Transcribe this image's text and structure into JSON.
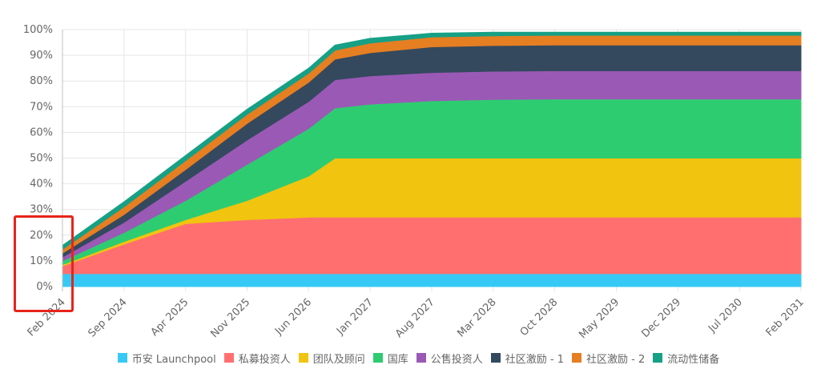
{
  "chart_data": {
    "type": "area",
    "stacked": true,
    "yaxis": {
      "ticks": [
        "100%",
        "90%",
        "80%",
        "70%",
        "60%",
        "50%",
        "40%",
        "30%",
        "20%",
        "10%",
        "0%"
      ],
      "ylim": [
        0,
        100
      ],
      "unit": "%"
    },
    "xaxis": {
      "labels": [
        "Feb 2024",
        "Sep 2024",
        "Apr 2025",
        "Nov 2025",
        "Jun 2026",
        "Jan 2027",
        "Aug 2027",
        "Mar 2028",
        "Oct 2028",
        "May 2029",
        "Dec 2029",
        "Jul 2030",
        "Feb 2031"
      ],
      "x_months": [
        0,
        7,
        14,
        21,
        28,
        35,
        42,
        49,
        56,
        63,
        70,
        77,
        84
      ]
    },
    "x": [
      0,
      7,
      14,
      21,
      28,
      31,
      35,
      42,
      49,
      56,
      63,
      70,
      77,
      84
    ],
    "series": [
      {
        "name": "币安 Launchpool",
        "color": "#36c9f6",
        "values": [
          5,
          5,
          5,
          5,
          5,
          5,
          5,
          5,
          5,
          5,
          5,
          5,
          5,
          5
        ]
      },
      {
        "name": "私募投资人",
        "color": "#ff6f6f",
        "values": [
          3,
          11.5,
          19.5,
          21,
          22,
          22,
          22,
          22,
          22,
          22,
          22,
          22,
          22,
          22
        ]
      },
      {
        "name": "团队及顾问",
        "color": "#f1c40f",
        "values": [
          0.5,
          1,
          1.5,
          7.5,
          16,
          23,
          23,
          23,
          23,
          23,
          23,
          23,
          23,
          23
        ]
      },
      {
        "name": "国库",
        "color": "#2ecc71",
        "values": [
          1.5,
          3.5,
          7.5,
          14,
          18.5,
          19.5,
          21,
          22.3,
          22.8,
          23,
          23,
          23,
          23,
          23
        ]
      },
      {
        "name": "公售投资人",
        "color": "#9b59b6",
        "values": [
          1.5,
          4,
          7.5,
          9.5,
          10.5,
          11,
          11,
          11,
          11,
          11,
          11,
          11,
          11,
          11
        ]
      },
      {
        "name": "社区激励 - 1",
        "color": "#34495e",
        "values": [
          1.5,
          3,
          4.5,
          6.5,
          7.5,
          8,
          9,
          10,
          10,
          10,
          10,
          10,
          10,
          10
        ]
      },
      {
        "name": "社区激励 - 2",
        "color": "#e67e22",
        "values": [
          1.5,
          3,
          3.5,
          3.5,
          3.5,
          3.5,
          3.8,
          3.8,
          3.8,
          3.8,
          3.8,
          3.8,
          3.8,
          3.8
        ]
      },
      {
        "name": "流动性储备",
        "color": "#16a085",
        "values": [
          1.5,
          2,
          2,
          2,
          2,
          2,
          1.8,
          1.5,
          1.4,
          1.2,
          1.2,
          1.2,
          1.2,
          1.2
        ]
      }
    ]
  }
}
